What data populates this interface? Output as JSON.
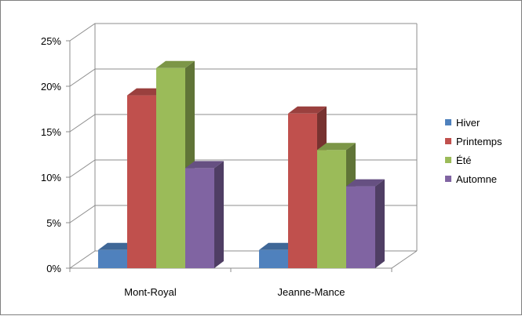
{
  "chart_data": {
    "type": "bar",
    "style": "3d-clustered-column",
    "categories": [
      "Mont-Royal",
      "Jeanne-Mance"
    ],
    "series": [
      {
        "name": "Hiver",
        "values": [
          2,
          2
        ],
        "color": "#4F81BD"
      },
      {
        "name": "Printemps",
        "values": [
          19,
          17
        ],
        "color": "#C0504D"
      },
      {
        "name": "Été",
        "values": [
          22,
          13
        ],
        "color": "#9BBB59"
      },
      {
        "name": "Automne",
        "values": [
          11,
          9
        ],
        "color": "#8064A2"
      }
    ],
    "ylim": [
      0,
      25
    ],
    "y_ticks": [
      "0%",
      "5%",
      "10%",
      "15%",
      "20%",
      "25%"
    ],
    "grid": true,
    "legend_position": "right"
  }
}
